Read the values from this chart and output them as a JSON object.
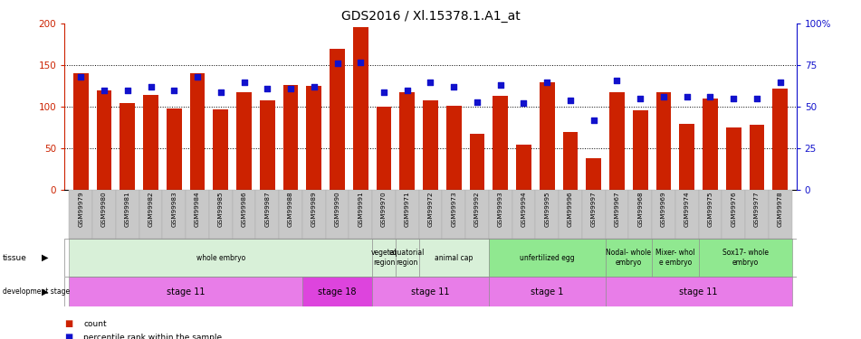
{
  "title": "GDS2016 / Xl.15378.1.A1_at",
  "samples": [
    "GSM99979",
    "GSM99980",
    "GSM99981",
    "GSM99982",
    "GSM99983",
    "GSM99984",
    "GSM99985",
    "GSM99986",
    "GSM99987",
    "GSM99988",
    "GSM99989",
    "GSM99990",
    "GSM99991",
    "GSM99970",
    "GSM99971",
    "GSM99972",
    "GSM99973",
    "GSM99992",
    "GSM99993",
    "GSM99994",
    "GSM99995",
    "GSM99996",
    "GSM99997",
    "GSM99967",
    "GSM99968",
    "GSM99969",
    "GSM99974",
    "GSM99975",
    "GSM99976",
    "GSM99977",
    "GSM99978"
  ],
  "counts": [
    140,
    120,
    104,
    114,
    98,
    140,
    97,
    118,
    108,
    126,
    125,
    170,
    196,
    100,
    118,
    108,
    101,
    67,
    113,
    54,
    130,
    70,
    38,
    118,
    96,
    118,
    80,
    110,
    75,
    78,
    122
  ],
  "percentiles": [
    68,
    60,
    60,
    62,
    60,
    68,
    59,
    65,
    61,
    61,
    62,
    76,
    77,
    59,
    60,
    65,
    62,
    53,
    63,
    52,
    65,
    54,
    42,
    66,
    55,
    56,
    56,
    56,
    55,
    55,
    65
  ],
  "bar_color": "#cc2200",
  "dot_color": "#1111cc",
  "ylim_left": [
    0,
    200
  ],
  "ylim_right": [
    0,
    100
  ],
  "yticks_left": [
    0,
    50,
    100,
    150,
    200
  ],
  "yticks_right": [
    0,
    25,
    50,
    75,
    100
  ],
  "grid_values": [
    50,
    100,
    150
  ],
  "xticklabel_bg": "#cccccc",
  "tissue_groups": [
    {
      "label": "whole embryo",
      "start": 0,
      "end": 12,
      "color": "#d8f0d8"
    },
    {
      "label": "vegetal\nregion",
      "start": 13,
      "end": 13,
      "color": "#d8f0d8"
    },
    {
      "label": "equatorial\nregion",
      "start": 14,
      "end": 14,
      "color": "#d8f0d8"
    },
    {
      "label": "animal cap",
      "start": 15,
      "end": 17,
      "color": "#d8f0d8"
    },
    {
      "label": "unfertilized egg",
      "start": 18,
      "end": 22,
      "color": "#90e890"
    },
    {
      "label": "Nodal- whole\nembryo",
      "start": 23,
      "end": 24,
      "color": "#90e890"
    },
    {
      "label": "Mixer- whol\ne embryo",
      "start": 25,
      "end": 26,
      "color": "#90e890"
    },
    {
      "label": "Sox17- whole\nembryo",
      "start": 27,
      "end": 30,
      "color": "#90e890"
    }
  ],
  "stage_groups": [
    {
      "label": "stage 11",
      "start": 0,
      "end": 9,
      "color": "#e87de8"
    },
    {
      "label": "stage 18",
      "start": 10,
      "end": 12,
      "color": "#dd44dd"
    },
    {
      "label": "stage 11",
      "start": 13,
      "end": 17,
      "color": "#e87de8"
    },
    {
      "label": "stage 1",
      "start": 18,
      "end": 22,
      "color": "#e87de8"
    },
    {
      "label": "stage 11",
      "start": 23,
      "end": 30,
      "color": "#e87de8"
    }
  ],
  "legend_count_color": "#cc2200",
  "legend_pct_color": "#1111cc"
}
